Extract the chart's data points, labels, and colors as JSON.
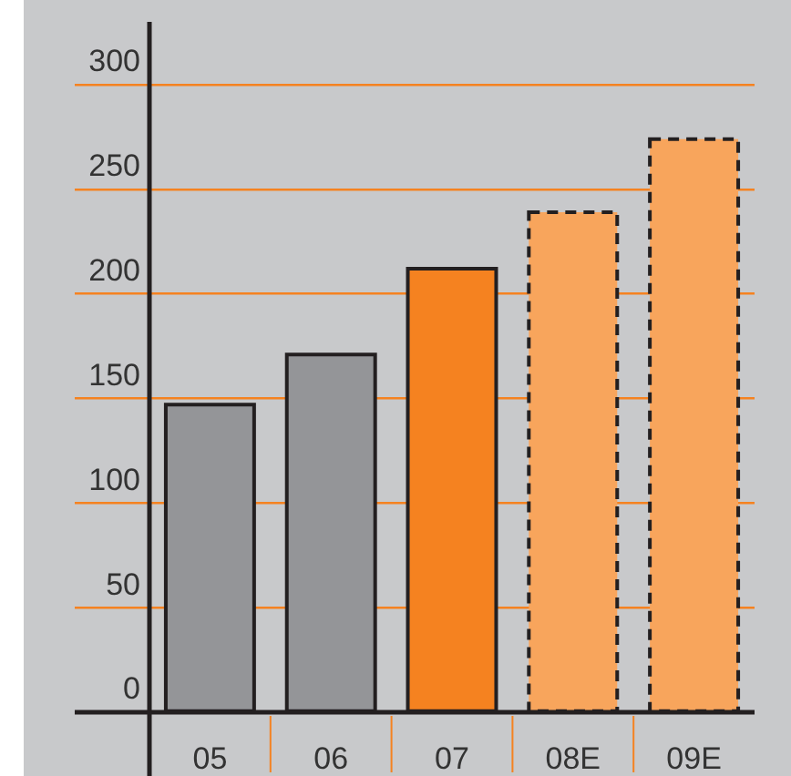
{
  "chart_data": {
    "type": "bar",
    "categories": [
      "05",
      "06",
      "07",
      "08E",
      "09E"
    ],
    "series": [
      {
        "values": [
          147,
          171,
          212,
          null,
          null
        ],
        "colors": [
          "#949598",
          "#949598",
          "#f58220",
          null,
          null
        ],
        "line_style": "solid"
      },
      {
        "values": [
          null,
          null,
          null,
          239,
          274
        ],
        "color": "#f8a55c",
        "line_style": "dashed"
      }
    ],
    "ylim": [
      0,
      330
    ],
    "yticks": [
      0,
      50,
      100,
      150,
      200,
      250,
      300
    ],
    "grid": "y"
  }
}
